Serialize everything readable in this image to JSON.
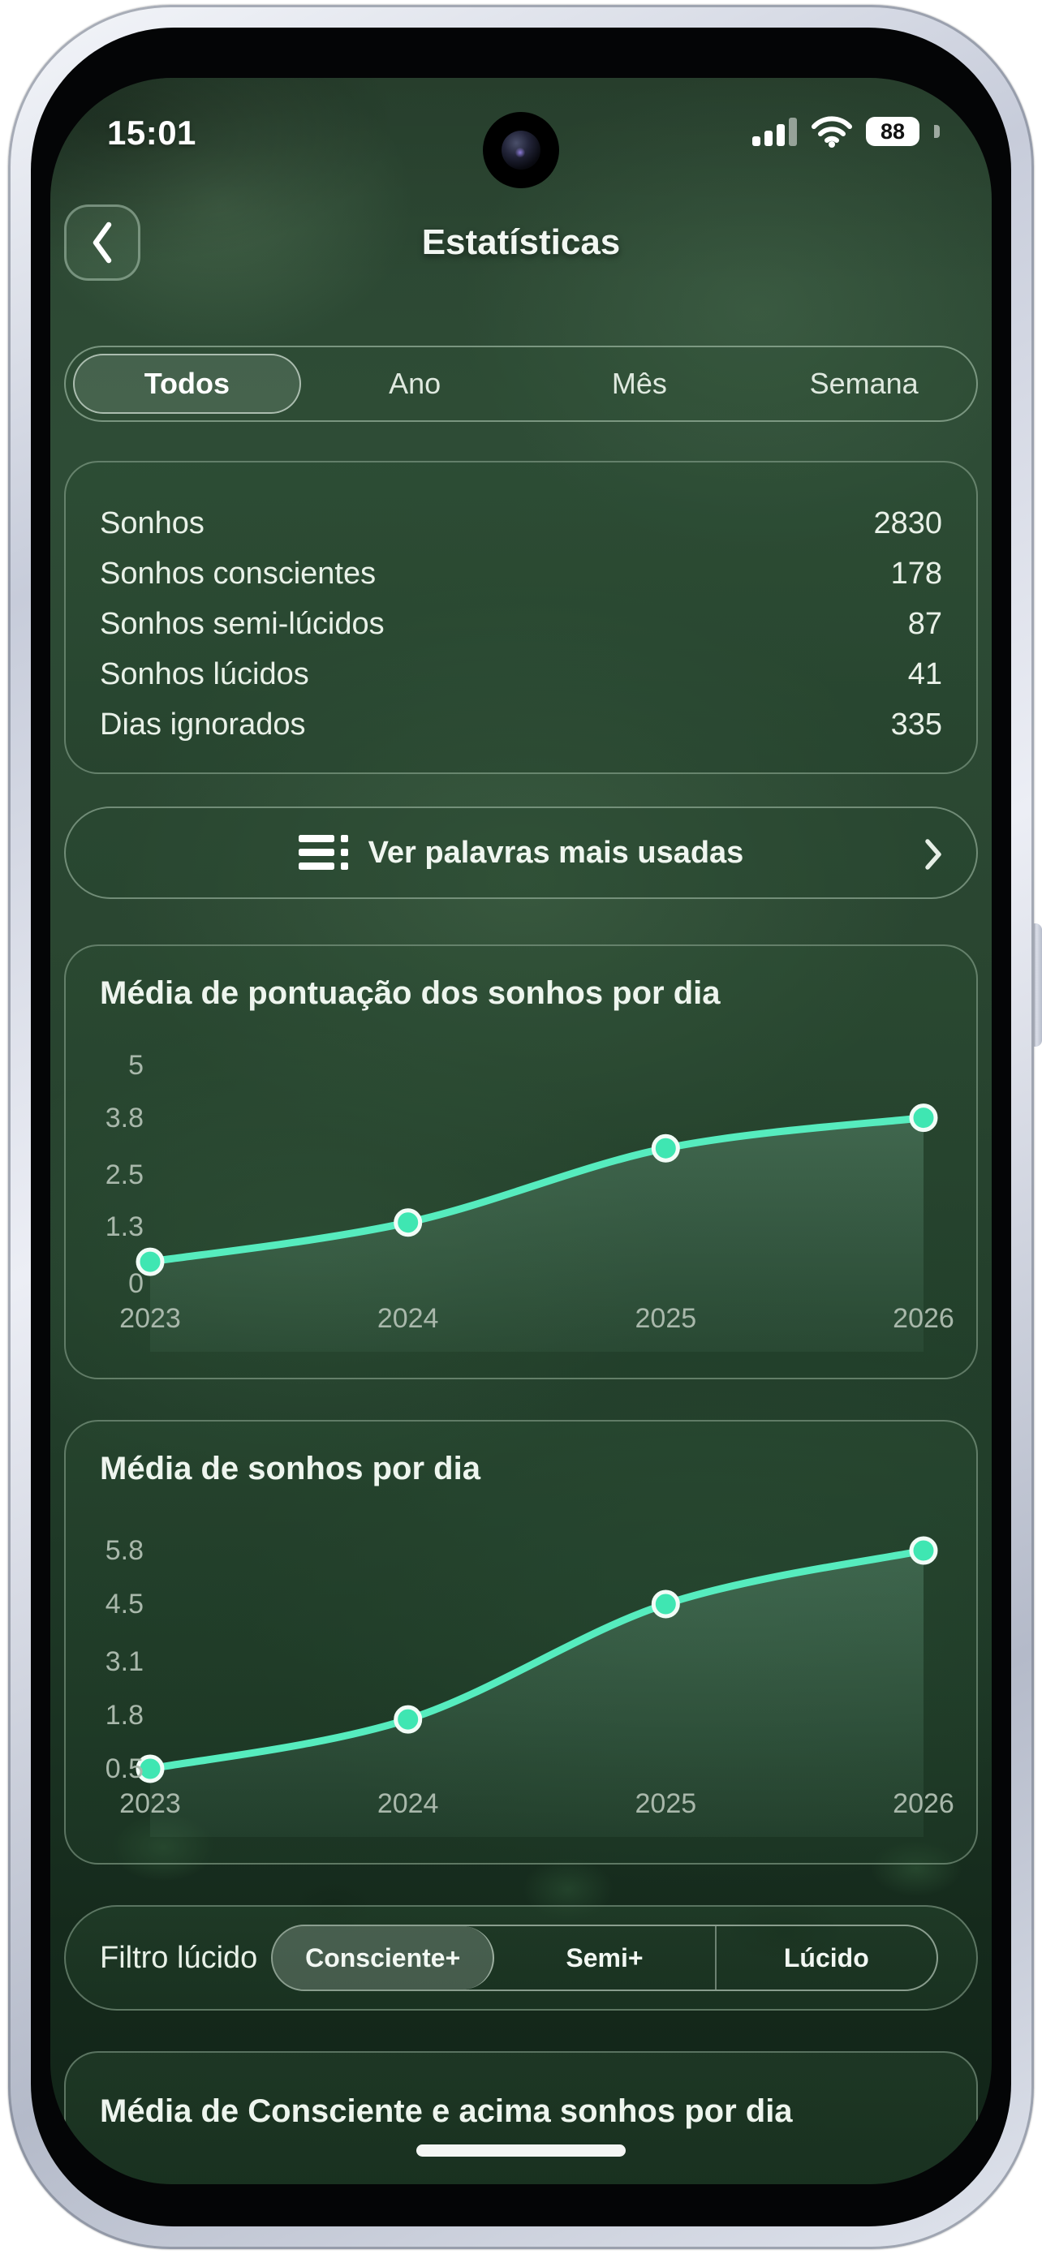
{
  "status_bar": {
    "time": "15:01",
    "signal_icon": "cellular-signal-bars",
    "wifi_icon": "wifi",
    "battery_icon": "battery-pill",
    "battery_level": "88",
    "camera_icon": "front-camera-punch-hole"
  },
  "header": {
    "back_icon": "chevron-left",
    "title": "Estatísticas"
  },
  "period_tabs": {
    "items": [
      {
        "label": "Todos",
        "selected": true
      },
      {
        "label": "Ano",
        "selected": false
      },
      {
        "label": "Mês",
        "selected": false
      },
      {
        "label": "Semana",
        "selected": false
      }
    ]
  },
  "stats_card": {
    "rows": [
      {
        "label": "Sonhos",
        "value": "2830"
      },
      {
        "label": "Sonhos conscientes",
        "value": "178"
      },
      {
        "label": "Sonhos semi-lúcidos",
        "value": "87"
      },
      {
        "label": "Sonhos lúcidos",
        "value": "41"
      },
      {
        "label": "Dias ignorados",
        "value": "335"
      }
    ]
  },
  "words_button": {
    "list_icon": "word-list",
    "label": "Ver palavras mais usadas",
    "chevron_icon": "chevron-right"
  },
  "lucid_filter": {
    "label": "Filtro lúcido",
    "options": [
      {
        "label": "Consciente+",
        "selected": true
      },
      {
        "label": "Semi+",
        "selected": false
      },
      {
        "label": "Lúcido",
        "selected": false
      }
    ]
  },
  "bottom_card": {
    "title": "Média de Consciente e acima sonhos por dia"
  },
  "colors": {
    "accent_line": "#56ecbe",
    "point_fill": "#3fe6b2",
    "card_border": "rgba(196,222,201,0.38)",
    "tick_label": "#a9b8ab"
  },
  "chart_data": [
    {
      "type": "line",
      "title": "Média de pontuação dos sonhos por dia",
      "x": [
        "2023",
        "2024",
        "2025",
        "2026"
      ],
      "values": [
        0.5,
        1.4,
        3.1,
        3.8
      ],
      "y_ticks": [
        0,
        1.3,
        2.5,
        3.8,
        5
      ],
      "y_tick_labels": [
        "0",
        "1.3",
        "2.5",
        "3.8",
        "5"
      ],
      "ylim": [
        0,
        5
      ],
      "xlabel": "",
      "ylabel": "",
      "grid": false,
      "legend": "none",
      "line_color": "#56ecbe",
      "point_color": "#3fe6b2",
      "point_stroke": "#f2fcf7",
      "area_fill": "#a5f0cd"
    },
    {
      "type": "line",
      "title": "Média de sonhos por dia",
      "x": [
        "2023",
        "2024",
        "2025",
        "2026"
      ],
      "values": [
        0.5,
        1.7,
        4.5,
        5.8
      ],
      "y_ticks": [
        0.5,
        1.8,
        3.1,
        4.5,
        5.8
      ],
      "y_tick_labels": [
        "0.5",
        "1.8",
        "3.1",
        "4.5",
        "5.8"
      ],
      "ylim": [
        0.5,
        5.8
      ],
      "xlabel": "",
      "ylabel": "",
      "grid": false,
      "legend": "none",
      "line_color": "#56ecbe",
      "point_color": "#3fe6b2",
      "point_stroke": "#f2fcf7",
      "area_fill": "#a5f0cd"
    }
  ]
}
